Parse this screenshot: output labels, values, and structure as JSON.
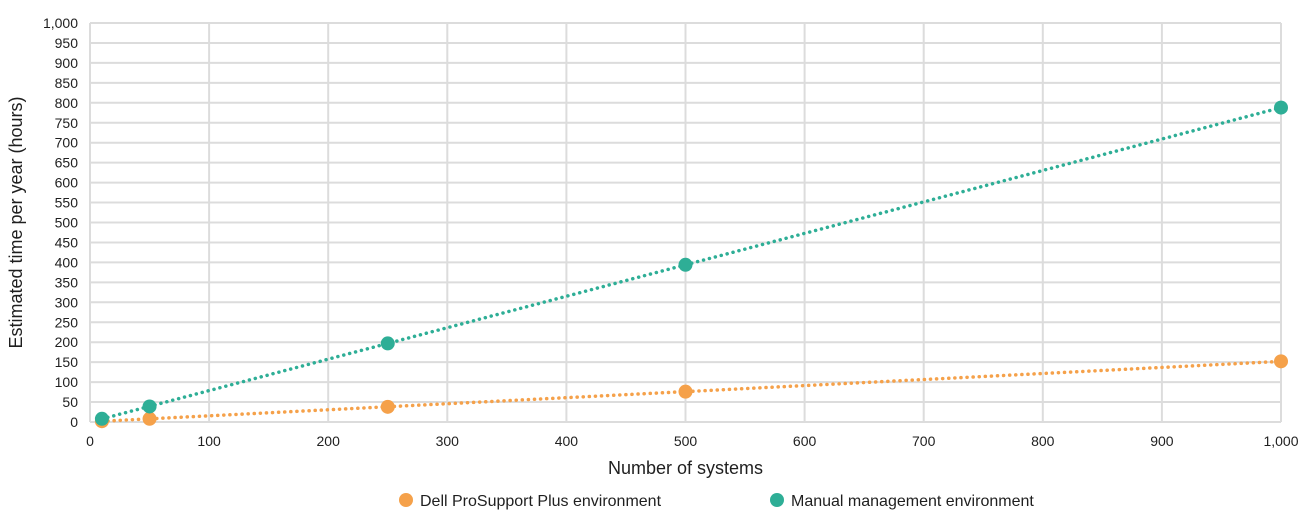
{
  "chart_data": {
    "type": "line",
    "xlabel": "Number of systems",
    "ylabel": "Estimated time per year (hours)",
    "xlim": [
      0,
      1000
    ],
    "ylim": [
      0,
      1000
    ],
    "x_ticks": [
      "0",
      "100",
      "200",
      "300",
      "400",
      "500",
      "600",
      "700",
      "800",
      "900",
      "1,000"
    ],
    "y_ticks": [
      "0",
      "50",
      "100",
      "150",
      "200",
      "250",
      "300",
      "350",
      "400",
      "450",
      "500",
      "550",
      "600",
      "650",
      "700",
      "750",
      "800",
      "850",
      "900",
      "950",
      "1,000"
    ],
    "grid": true,
    "legend_position": "bottom",
    "series": [
      {
        "name": "Dell ProSupport Plus environment",
        "color": "#f5a14a",
        "x": [
          10,
          50,
          250,
          500,
          1000
        ],
        "y": [
          2,
          8,
          38,
          76,
          152
        ]
      },
      {
        "name": "Manual management environment",
        "color": "#2eae96",
        "x": [
          10,
          50,
          250,
          500,
          1000
        ],
        "y": [
          8,
          39,
          197,
          394,
          788
        ]
      }
    ]
  }
}
